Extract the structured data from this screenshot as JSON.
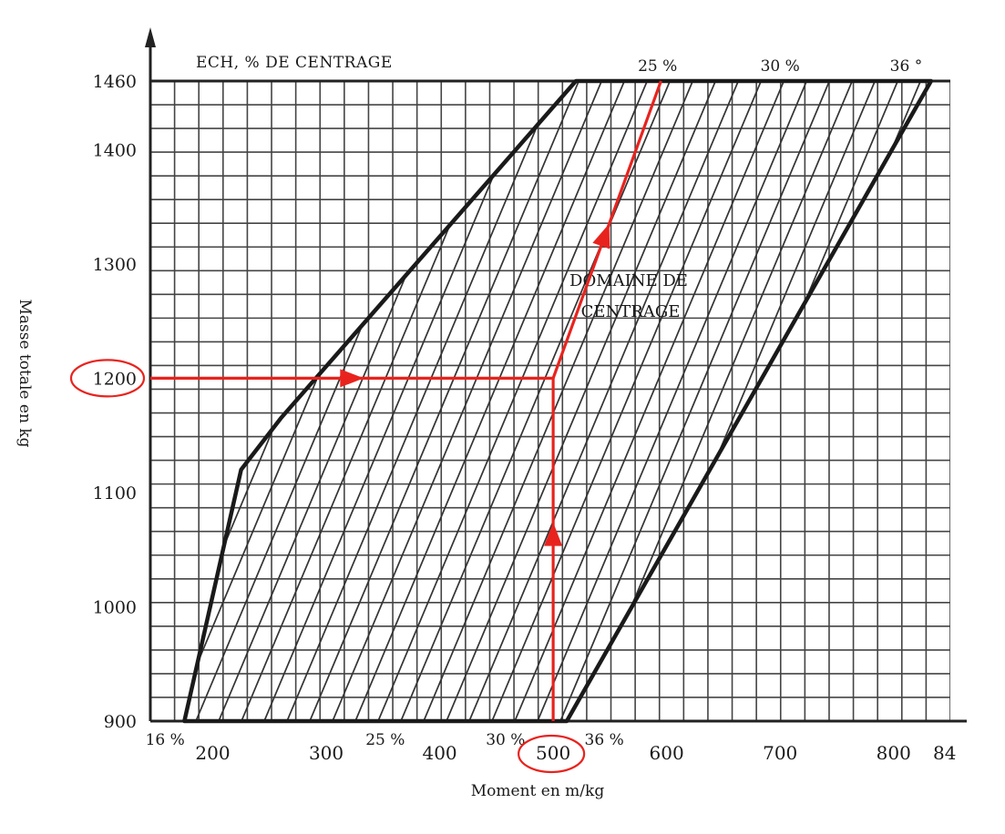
{
  "chart_data": {
    "type": "line",
    "title": "ECH, % DE CENTRAGE",
    "xlabel": "Moment en m/kg",
    "ylabel": "Masse totale en kg",
    "xlim": [
      145,
      850
    ],
    "ylim": [
      900,
      1460
    ],
    "x_ticks": [
      200,
      300,
      400,
      500,
      600,
      700,
      800
    ],
    "x_tick_labels": [
      "200",
      "300",
      "400",
      "500",
      "600",
      "700",
      "800"
    ],
    "x_tick_last_label": "84",
    "y_ticks": [
      900,
      1000,
      1100,
      1200,
      1300,
      1400,
      1460
    ],
    "y_tick_labels": [
      "900",
      "1000",
      "1100",
      "1200",
      "1300",
      "1400",
      "1460"
    ],
    "bottom_percent_labels": [
      {
        "text": "16 %",
        "x": 158
      },
      {
        "text": "25 %",
        "x": 352
      },
      {
        "text": "30 %",
        "x": 458
      },
      {
        "text": "36 %",
        "x": 545
      }
    ],
    "top_percent_labels": [
      {
        "text": "25 %",
        "x": 592
      },
      {
        "text": "30 %",
        "x": 700
      },
      {
        "text": "36 °",
        "x": 811
      }
    ],
    "region_label_line1": "DOMAINE DE",
    "region_label_line2": "CENTRAGE",
    "envelope": {
      "name": "",
      "points": [
        [
          175,
          900
        ],
        [
          225,
          1120
        ],
        [
          260,
          1165
        ],
        [
          520,
          1460
        ],
        [
          833,
          1460
        ],
        [
          512,
          900
        ]
      ]
    },
    "example_path": {
      "mass": 1200,
      "moment": 500,
      "points_mass_arrow": [
        [
          145,
          1200
        ],
        [
          500,
          1200
        ]
      ],
      "points_moment_arrow": [
        [
          500,
          900
        ],
        [
          500,
          1200
        ]
      ],
      "points_cg_line": [
        [
          500,
          1200
        ],
        [
          595,
          1460
        ]
      ]
    },
    "accent_color": "#e8231e",
    "grid": true
  }
}
